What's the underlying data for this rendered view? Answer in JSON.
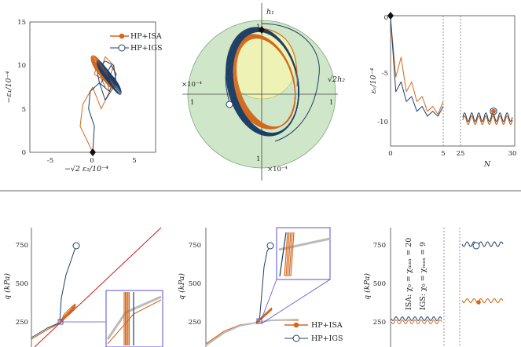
{
  "colors": {
    "isa": "#d2691e",
    "igs": "#1f3f66",
    "ref": "#d01818",
    "zoom": "#5a4fcf",
    "grey": "#bbbbbb",
    "axis": "#444444",
    "green": "#cfe6c8",
    "yellow": "#eef2b5"
  },
  "chart_data": [
    {
      "type": "line",
      "panel": "top-left",
      "xlabel": "−√2 ε₂/10⁻⁴",
      "ylabel": "−ε₁/10⁻⁴",
      "xlim": [
        -7.5,
        7.5
      ],
      "ylim": [
        0,
        15
      ],
      "x_ticks": [
        "-5",
        "0",
        "5"
      ],
      "y_ticks": [
        "0",
        "5",
        "10",
        "15"
      ],
      "legend": {
        "placement": "top-right",
        "items": [
          "HP+ISA",
          "HP+IGS"
        ]
      },
      "series": [
        {
          "name": "HP+ISA",
          "x": [
            0,
            -0.5,
            -1.5,
            -1.2,
            0,
            1,
            2,
            1.5,
            0.5,
            -0.2,
            0.5,
            0.2,
            1.8,
            2.5,
            1.5,
            0.8,
            1.5
          ],
          "y": [
            0,
            1,
            3,
            5.5,
            7.5,
            5,
            7,
            9,
            10.5,
            11,
            10,
            9,
            8,
            10,
            11,
            9,
            7.5
          ]
        },
        {
          "name": "HP+IGS",
          "x": [
            0,
            0.2,
            -0.5,
            -0.3,
            0.8,
            1.5,
            2.8,
            2.5,
            1.5,
            0.5,
            0.8,
            2.0,
            2.8,
            2.2,
            1.0
          ],
          "y": [
            0,
            3,
            5,
            7,
            8,
            6,
            8,
            10,
            10.5,
            9.5,
            8,
            7,
            9,
            10,
            8
          ]
        }
      ]
    },
    {
      "type": "line",
      "panel": "top-middle",
      "xlabel": "√2h₂",
      "ylabel": "h₁",
      "scale_note": "×10⁻⁴",
      "x_ticks": [
        "1",
        "1"
      ],
      "y_ticks": [
        "1",
        "1"
      ],
      "series": [
        {
          "name": "HP+ISA"
        },
        {
          "name": "HP+IGS"
        }
      ]
    },
    {
      "type": "line",
      "panel": "top-right",
      "xlabel": "N",
      "ylabel": "εᵥ/10⁻⁴",
      "x_ticks": [
        "0",
        "5",
        "25",
        "30"
      ],
      "y_ticks": [
        "0",
        "-5",
        "-10"
      ],
      "series": [
        {
          "name": "HP+ISA",
          "x": [
            0,
            0.5,
            1,
            1.5,
            2,
            2.5,
            3,
            3.5,
            4,
            4.5,
            5
          ],
          "y": [
            0,
            -6,
            -4,
            -7.5,
            -6.5,
            -8.5,
            -8,
            -9.5,
            -9,
            -9.8,
            -8.5
          ]
        },
        {
          "name": "HP+IGS",
          "x": [
            0,
            0.5,
            1,
            1.5,
            2,
            2.5,
            3,
            3.5,
            4,
            4.5,
            5
          ],
          "y": [
            0,
            -7.5,
            -6.5,
            -8.5,
            -8,
            -9.5,
            -9,
            -10,
            -9.5,
            -10,
            -9
          ]
        }
      ]
    },
    {
      "type": "line",
      "panel": "bottom-left",
      "ylabel": "q (kPa)",
      "y_ticks": [
        "250",
        "500",
        "750"
      ]
    },
    {
      "type": "line",
      "panel": "bottom-middle",
      "ylabel": "q (kPa)",
      "y_ticks": [
        "250",
        "500",
        "750"
      ],
      "legend": {
        "placement": "bottom-right",
        "items": [
          "HP+ISA",
          "HP+IGS"
        ]
      }
    },
    {
      "type": "line",
      "panel": "bottom-right",
      "ylabel": "q (kPa)",
      "y_ticks": [
        "250",
        "500",
        "750"
      ],
      "annotations": [
        "ISA: χ₀ = χₘₐₓ = 20",
        "IGS: χ₀ = χₘₐₓ = 9"
      ]
    }
  ]
}
